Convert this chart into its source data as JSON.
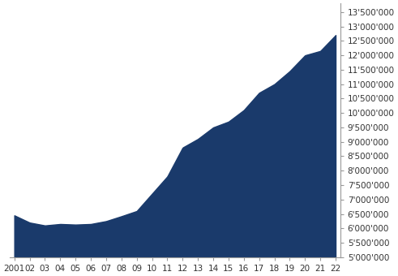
{
  "x_years": [
    2001,
    2002,
    2003,
    2004,
    2005,
    2006,
    2007,
    2008,
    2009,
    2010,
    2011,
    2012,
    2013,
    2014,
    2015,
    2016,
    2017,
    2018,
    2019,
    2020,
    2021,
    2022
  ],
  "y_values": [
    6450000,
    6200000,
    6100000,
    6150000,
    6130000,
    6150000,
    6250000,
    6420000,
    6600000,
    7200000,
    7800000,
    8800000,
    9100000,
    9500000,
    9700000,
    10100000,
    10700000,
    11000000,
    11450000,
    12000000,
    12150000,
    12700000
  ],
  "fill_color": "#1a3a6b",
  "line_color": "#1a3a6b",
  "background_color": "#ffffff",
  "ylim_min": 5000000,
  "ylim_max": 13800000,
  "ytick_step": 500000,
  "x_labels": [
    "2001",
    "02",
    "03",
    "04",
    "05",
    "06",
    "07",
    "08",
    "09",
    "10",
    "11",
    "12",
    "13",
    "14",
    "15",
    "16",
    "17",
    "18",
    "19",
    "20",
    "21",
    "22"
  ],
  "tick_fontsize": 7.5,
  "tick_color": "#333333"
}
